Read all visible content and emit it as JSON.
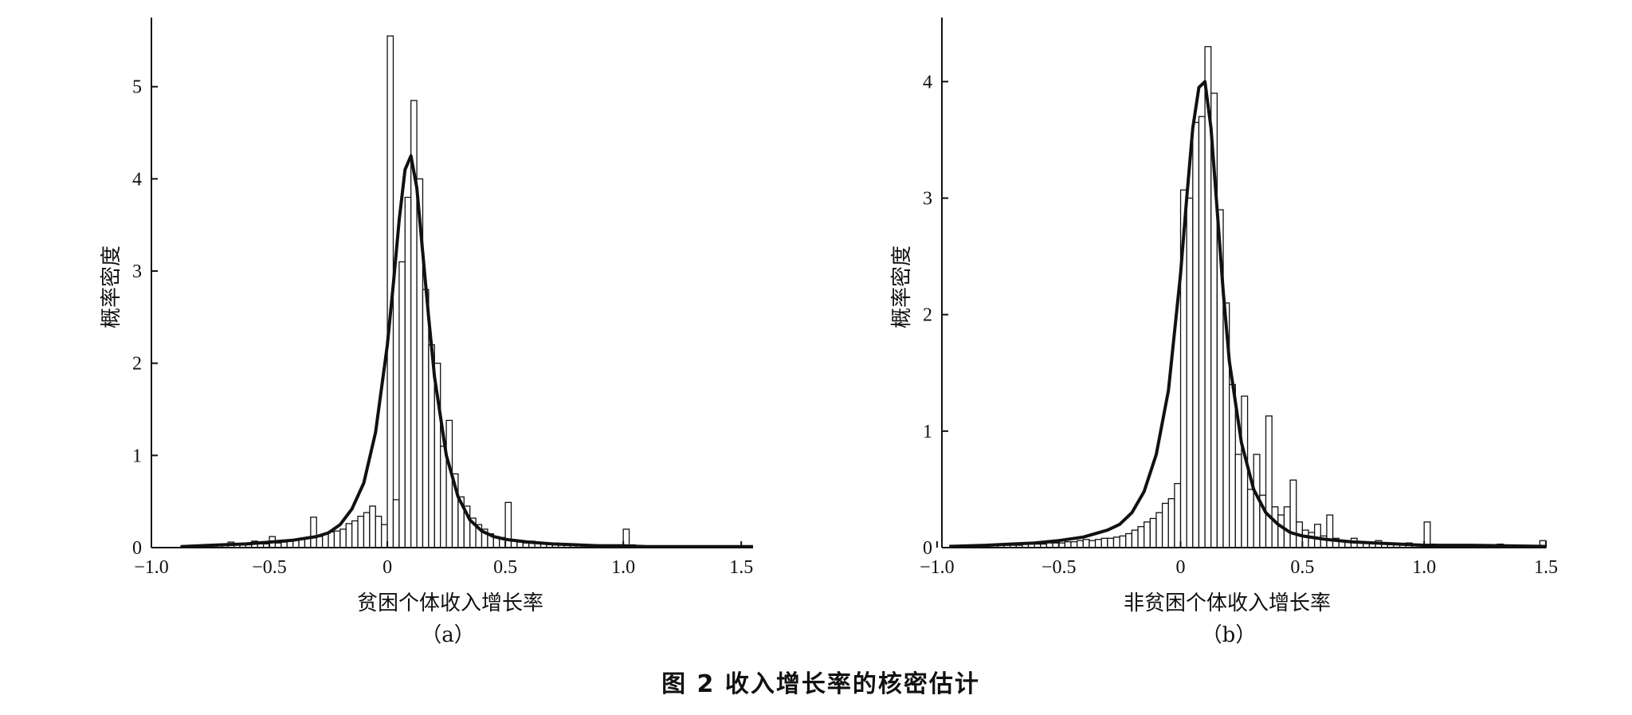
{
  "caption": "图 2   收入增长率的核密估计",
  "chart_data": [
    {
      "type": "histogram-with-density",
      "panel_label": "（a）",
      "xlabel": "贫困个体收入增长率",
      "ylabel": "概率密度",
      "xlim": [
        -1.0,
        1.55
      ],
      "ylim": [
        0,
        5.75
      ],
      "x_ticks": [
        -1.0,
        -0.5,
        0,
        0.5,
        1.0,
        1.5
      ],
      "x_tick_labels": [
        "−1.0",
        "−0.5",
        "0",
        "0.5",
        "1.0",
        "1.5"
      ],
      "y_ticks": [
        0,
        1,
        2,
        3,
        4,
        5
      ],
      "y_tick_labels": [
        "0",
        "1",
        "2",
        "3",
        "4",
        "5"
      ],
      "bin_width": 0.025,
      "bins_start": [
        -0.875,
        -0.85,
        -0.825,
        -0.8,
        -0.775,
        -0.75,
        -0.725,
        -0.7,
        -0.675,
        -0.65,
        -0.625,
        -0.6,
        -0.575,
        -0.55,
        -0.525,
        -0.5,
        -0.475,
        -0.45,
        -0.425,
        -0.4,
        -0.375,
        -0.35,
        -0.325,
        -0.3,
        -0.275,
        -0.25,
        -0.225,
        -0.2,
        -0.175,
        -0.15,
        -0.125,
        -0.1,
        -0.075,
        -0.05,
        -0.025,
        0.0,
        0.025,
        0.05,
        0.075,
        0.1,
        0.125,
        0.15,
        0.175,
        0.2,
        0.225,
        0.25,
        0.275,
        0.3,
        0.325,
        0.35,
        0.375,
        0.4,
        0.425,
        0.45,
        0.475,
        0.5,
        0.525,
        0.55,
        0.575,
        0.6,
        0.625,
        0.65,
        0.675,
        0.7,
        0.725,
        0.75,
        0.775,
        0.8,
        0.825,
        0.85,
        0.875,
        0.9,
        0.925,
        0.95,
        0.975,
        1.0,
        1.025,
        1.05
      ],
      "bin_density": [
        0.02,
        0.02,
        0.02,
        0.02,
        0.02,
        0.02,
        0.03,
        0.03,
        0.06,
        0.04,
        0.03,
        0.03,
        0.07,
        0.04,
        0.04,
        0.12,
        0.05,
        0.06,
        0.07,
        0.08,
        0.09,
        0.1,
        0.33,
        0.12,
        0.15,
        0.17,
        0.18,
        0.2,
        0.26,
        0.29,
        0.34,
        0.38,
        0.45,
        0.34,
        0.25,
        5.55,
        0.52,
        3.1,
        3.8,
        4.85,
        4.0,
        2.8,
        2.2,
        2.0,
        1.1,
        1.38,
        0.8,
        0.55,
        0.45,
        0.32,
        0.25,
        0.2,
        0.15,
        0.12,
        0.11,
        0.49,
        0.07,
        0.06,
        0.05,
        0.07,
        0.06,
        0.05,
        0.04,
        0.05,
        0.04,
        0.04,
        0.03,
        0.03,
        0.03,
        0.03,
        0.03,
        0.03,
        0.03,
        0.03,
        0.03,
        0.2,
        0.03,
        0.02
      ],
      "density_curve": {
        "x": [
          -0.875,
          -0.8,
          -0.7,
          -0.6,
          -0.5,
          -0.4,
          -0.3,
          -0.25,
          -0.2,
          -0.15,
          -0.1,
          -0.05,
          0.0,
          0.025,
          0.05,
          0.075,
          0.1,
          0.125,
          0.15,
          0.175,
          0.2,
          0.25,
          0.3,
          0.35,
          0.4,
          0.45,
          0.5,
          0.6,
          0.7,
          0.8,
          0.9,
          1.0,
          1.1,
          1.55
        ],
        "y": [
          0.01,
          0.02,
          0.03,
          0.04,
          0.06,
          0.08,
          0.12,
          0.16,
          0.25,
          0.42,
          0.7,
          1.25,
          2.2,
          2.85,
          3.55,
          4.1,
          4.25,
          3.9,
          3.2,
          2.5,
          1.85,
          1.0,
          0.55,
          0.3,
          0.18,
          0.12,
          0.09,
          0.06,
          0.04,
          0.03,
          0.02,
          0.02,
          0.01,
          0.01
        ]
      }
    },
    {
      "type": "histogram-with-density",
      "panel_label": "（b）",
      "xlabel": "非贫困个体收入增长率",
      "ylabel": "概率密度",
      "xlim": [
        -0.98,
        1.5
      ],
      "ylim": [
        0,
        4.55
      ],
      "x_ticks": [
        -1.0,
        -0.5,
        0,
        0.5,
        1.0,
        1.5
      ],
      "x_tick_labels": [
        "−1.0",
        "−0.5",
        "0",
        "0.5",
        "1.0",
        "1.5"
      ],
      "y_ticks": [
        0,
        1,
        2,
        3,
        4
      ],
      "y_tick_labels": [
        "0",
        "1",
        "2",
        "3",
        "4"
      ],
      "bin_width": 0.025,
      "bins_start": [
        -0.9,
        -0.875,
        -0.85,
        -0.825,
        -0.8,
        -0.775,
        -0.75,
        -0.725,
        -0.7,
        -0.675,
        -0.65,
        -0.625,
        -0.6,
        -0.575,
        -0.55,
        -0.525,
        -0.5,
        -0.475,
        -0.45,
        -0.425,
        -0.4,
        -0.375,
        -0.35,
        -0.325,
        -0.3,
        -0.275,
        -0.25,
        -0.225,
        -0.2,
        -0.175,
        -0.15,
        -0.125,
        -0.1,
        -0.075,
        -0.05,
        -0.025,
        0.0,
        0.025,
        0.05,
        0.075,
        0.1,
        0.125,
        0.15,
        0.175,
        0.2,
        0.225,
        0.25,
        0.275,
        0.3,
        0.325,
        0.35,
        0.375,
        0.4,
        0.425,
        0.45,
        0.475,
        0.5,
        0.525,
        0.55,
        0.575,
        0.6,
        0.625,
        0.65,
        0.675,
        0.7,
        0.725,
        0.75,
        0.775,
        0.8,
        0.825,
        0.85,
        0.875,
        0.9,
        0.925,
        0.95,
        0.975,
        1.0,
        1.025,
        1.05,
        1.1,
        1.2,
        1.3,
        1.4,
        1.475
      ],
      "bin_density": [
        0.01,
        0.01,
        0.01,
        0.01,
        0.02,
        0.02,
        0.02,
        0.02,
        0.02,
        0.02,
        0.03,
        0.03,
        0.03,
        0.03,
        0.04,
        0.04,
        0.04,
        0.05,
        0.05,
        0.06,
        0.07,
        0.06,
        0.07,
        0.08,
        0.08,
        0.09,
        0.1,
        0.12,
        0.15,
        0.18,
        0.22,
        0.25,
        0.3,
        0.38,
        0.42,
        0.55,
        3.07,
        3.0,
        3.65,
        3.7,
        4.3,
        3.9,
        2.9,
        2.1,
        1.4,
        0.8,
        1.3,
        0.5,
        0.8,
        0.45,
        1.13,
        0.35,
        0.28,
        0.35,
        0.58,
        0.22,
        0.15,
        0.13,
        0.2,
        0.1,
        0.28,
        0.08,
        0.06,
        0.05,
        0.08,
        0.05,
        0.05,
        0.04,
        0.06,
        0.04,
        0.04,
        0.03,
        0.03,
        0.04,
        0.03,
        0.03,
        0.22,
        0.03,
        0.02,
        0.02,
        0.02,
        0.03,
        0.02,
        0.06
      ],
      "density_curve": {
        "x": [
          -0.95,
          -0.8,
          -0.7,
          -0.6,
          -0.5,
          -0.4,
          -0.3,
          -0.25,
          -0.2,
          -0.15,
          -0.1,
          -0.05,
          0.0,
          0.025,
          0.05,
          0.075,
          0.1,
          0.125,
          0.15,
          0.175,
          0.2,
          0.25,
          0.3,
          0.35,
          0.4,
          0.45,
          0.5,
          0.6,
          0.7,
          0.8,
          0.9,
          1.0,
          1.2,
          1.5
        ],
        "y": [
          0.01,
          0.02,
          0.03,
          0.04,
          0.06,
          0.09,
          0.15,
          0.2,
          0.3,
          0.48,
          0.8,
          1.35,
          2.35,
          3.0,
          3.6,
          3.95,
          4.0,
          3.6,
          2.9,
          2.2,
          1.6,
          0.9,
          0.5,
          0.3,
          0.2,
          0.13,
          0.1,
          0.07,
          0.05,
          0.04,
          0.03,
          0.02,
          0.02,
          0.01
        ]
      }
    }
  ]
}
